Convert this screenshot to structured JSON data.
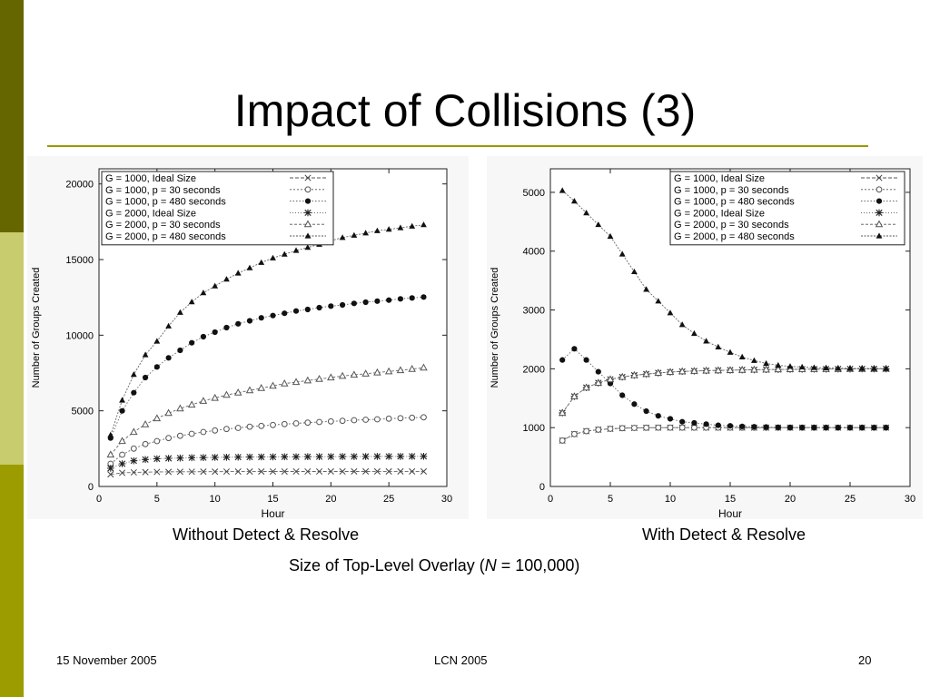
{
  "slide": {
    "title": "Impact of Collisions (3)",
    "caption_left": "Without Detect & Resolve",
    "caption_right": "With Detect & Resolve",
    "caption_main_pre": "Size of Top-Level Overlay (",
    "caption_main_var": "N",
    "caption_main_post": " = 100,000)",
    "footer_date": "15 November 2005",
    "footer_conf": "LCN 2005",
    "footer_page": "20",
    "colors": {
      "accent_dark": "#666600",
      "accent_light": "#c8cc6e",
      "accent_mid": "#9c9c00",
      "rule": "#999900"
    }
  },
  "chart_data": [
    {
      "type": "line",
      "xlabel": "Hour",
      "ylabel": "Number of Groups Created",
      "xlim": [
        0,
        30
      ],
      "ylim": [
        0,
        21000
      ],
      "xticks": [
        0,
        5,
        10,
        15,
        20,
        25,
        30
      ],
      "yticks": [
        0,
        5000,
        10000,
        15000,
        20000
      ],
      "legend_position": "top-left",
      "x": [
        1,
        2,
        3,
        4,
        5,
        6,
        7,
        8,
        9,
        10,
        11,
        12,
        13,
        14,
        15,
        16,
        17,
        18,
        19,
        20,
        21,
        22,
        23,
        24,
        25,
        26,
        27,
        28
      ],
      "series": [
        {
          "name": "G = 1000, Ideal Size",
          "marker": "x",
          "values": [
            800,
            900,
            930,
            950,
            960,
            965,
            970,
            975,
            980,
            980,
            982,
            985,
            985,
            987,
            988,
            988,
            990,
            990,
            990,
            992,
            992,
            993,
            993,
            994,
            994,
            995,
            995,
            995
          ]
        },
        {
          "name": "G = 1000, p =  30 seconds",
          "marker": "circle-open",
          "values": [
            1500,
            2100,
            2500,
            2800,
            3000,
            3200,
            3350,
            3480,
            3600,
            3700,
            3800,
            3870,
            3950,
            4000,
            4060,
            4120,
            4170,
            4220,
            4260,
            4300,
            4340,
            4380,
            4410,
            4440,
            4480,
            4510,
            4540,
            4570
          ]
        },
        {
          "name": "G = 1000, p = 480 seconds",
          "marker": "circle-filled",
          "values": [
            3200,
            5000,
            6200,
            7200,
            7900,
            8500,
            9000,
            9500,
            9900,
            10200,
            10500,
            10750,
            10950,
            11150,
            11300,
            11450,
            11600,
            11700,
            11820,
            11920,
            12000,
            12100,
            12180,
            12250,
            12320,
            12400,
            12460,
            12520
          ]
        },
        {
          "name": "G = 2000, Ideal Size",
          "marker": "star",
          "values": [
            1200,
            1500,
            1700,
            1780,
            1830,
            1860,
            1880,
            1900,
            1910,
            1920,
            1930,
            1940,
            1945,
            1950,
            1955,
            1960,
            1963,
            1966,
            1970,
            1972,
            1975,
            1977,
            1980,
            1982,
            1984,
            1986,
            1988,
            1990
          ]
        },
        {
          "name": "G = 2000, p =  30 seconds",
          "marker": "triangle-open",
          "values": [
            2100,
            3000,
            3600,
            4100,
            4500,
            4850,
            5150,
            5400,
            5650,
            5850,
            6050,
            6200,
            6350,
            6500,
            6650,
            6800,
            6900,
            7000,
            7100,
            7200,
            7300,
            7380,
            7450,
            7530,
            7600,
            7680,
            7760,
            7850
          ]
        },
        {
          "name": "G = 2000, p = 480 seconds",
          "marker": "triangle-filled",
          "values": [
            3400,
            5700,
            7400,
            8700,
            9600,
            10600,
            11500,
            12200,
            12800,
            13250,
            13700,
            14100,
            14450,
            14800,
            15100,
            15350,
            15600,
            15800,
            16000,
            16250,
            16450,
            16600,
            16750,
            16900,
            17000,
            17100,
            17200,
            17300
          ]
        }
      ]
    },
    {
      "type": "line",
      "xlabel": "Hour",
      "ylabel": "Number of Groups Created",
      "xlim": [
        0,
        30
      ],
      "ylim": [
        0,
        5400
      ],
      "xticks": [
        0,
        5,
        10,
        15,
        20,
        25,
        30
      ],
      "yticks": [
        0,
        1000,
        2000,
        3000,
        4000,
        5000
      ],
      "legend_position": "top-right",
      "x": [
        1,
        2,
        3,
        4,
        5,
        6,
        7,
        8,
        9,
        10,
        11,
        12,
        13,
        14,
        15,
        16,
        17,
        18,
        19,
        20,
        21,
        22,
        23,
        24,
        25,
        26,
        27,
        28
      ],
      "series": [
        {
          "name": "G = 1000, Ideal Size",
          "marker": "x",
          "values": [
            780,
            890,
            940,
            965,
            980,
            990,
            995,
            998,
            1000,
            1000,
            1000,
            1000,
            1000,
            1000,
            1000,
            1000,
            1000,
            1000,
            1000,
            1000,
            1000,
            1000,
            1000,
            1000,
            1000,
            1000,
            1000,
            1000
          ]
        },
        {
          "name": "G = 1000, p =  30 seconds",
          "marker": "circle-open",
          "values": [
            780,
            890,
            940,
            965,
            980,
            990,
            995,
            998,
            1000,
            1000,
            1000,
            1000,
            1000,
            1000,
            1000,
            1000,
            1000,
            1000,
            1000,
            1000,
            1000,
            1000,
            1000,
            1000,
            1000,
            1000,
            1000,
            1000
          ]
        },
        {
          "name": "G = 1000, p = 480 seconds",
          "marker": "circle-filled",
          "values": [
            2150,
            2340,
            2150,
            1950,
            1750,
            1550,
            1400,
            1280,
            1200,
            1150,
            1100,
            1080,
            1060,
            1040,
            1030,
            1020,
            1015,
            1010,
            1005,
            1003,
            1002,
            1001,
            1000,
            1000,
            1000,
            1000,
            1000,
            1000
          ]
        },
        {
          "name": "G = 2000, Ideal Size",
          "marker": "star",
          "values": [
            1250,
            1530,
            1680,
            1760,
            1820,
            1860,
            1890,
            1910,
            1930,
            1945,
            1955,
            1962,
            1968,
            1973,
            1977,
            1981,
            1984,
            1987,
            1989,
            1991,
            1993,
            1994,
            1995,
            1996,
            1997,
            1998,
            1998,
            1999
          ]
        },
        {
          "name": "G = 2000, p =  30 seconds",
          "marker": "triangle-open",
          "values": [
            1250,
            1530,
            1680,
            1760,
            1820,
            1860,
            1890,
            1910,
            1930,
            1945,
            1955,
            1962,
            1968,
            1973,
            1977,
            1981,
            1984,
            1987,
            1989,
            1991,
            1993,
            1994,
            1995,
            1996,
            1997,
            1998,
            1998,
            1999
          ]
        },
        {
          "name": "G = 2000, p = 480 seconds",
          "marker": "triangle-filled",
          "values": [
            5030,
            4850,
            4650,
            4450,
            4250,
            3950,
            3650,
            3350,
            3150,
            2950,
            2750,
            2600,
            2470,
            2370,
            2280,
            2200,
            2140,
            2090,
            2060,
            2040,
            2030,
            2020,
            2015,
            2010,
            2008,
            2006,
            2005,
            2005
          ]
        }
      ]
    }
  ]
}
